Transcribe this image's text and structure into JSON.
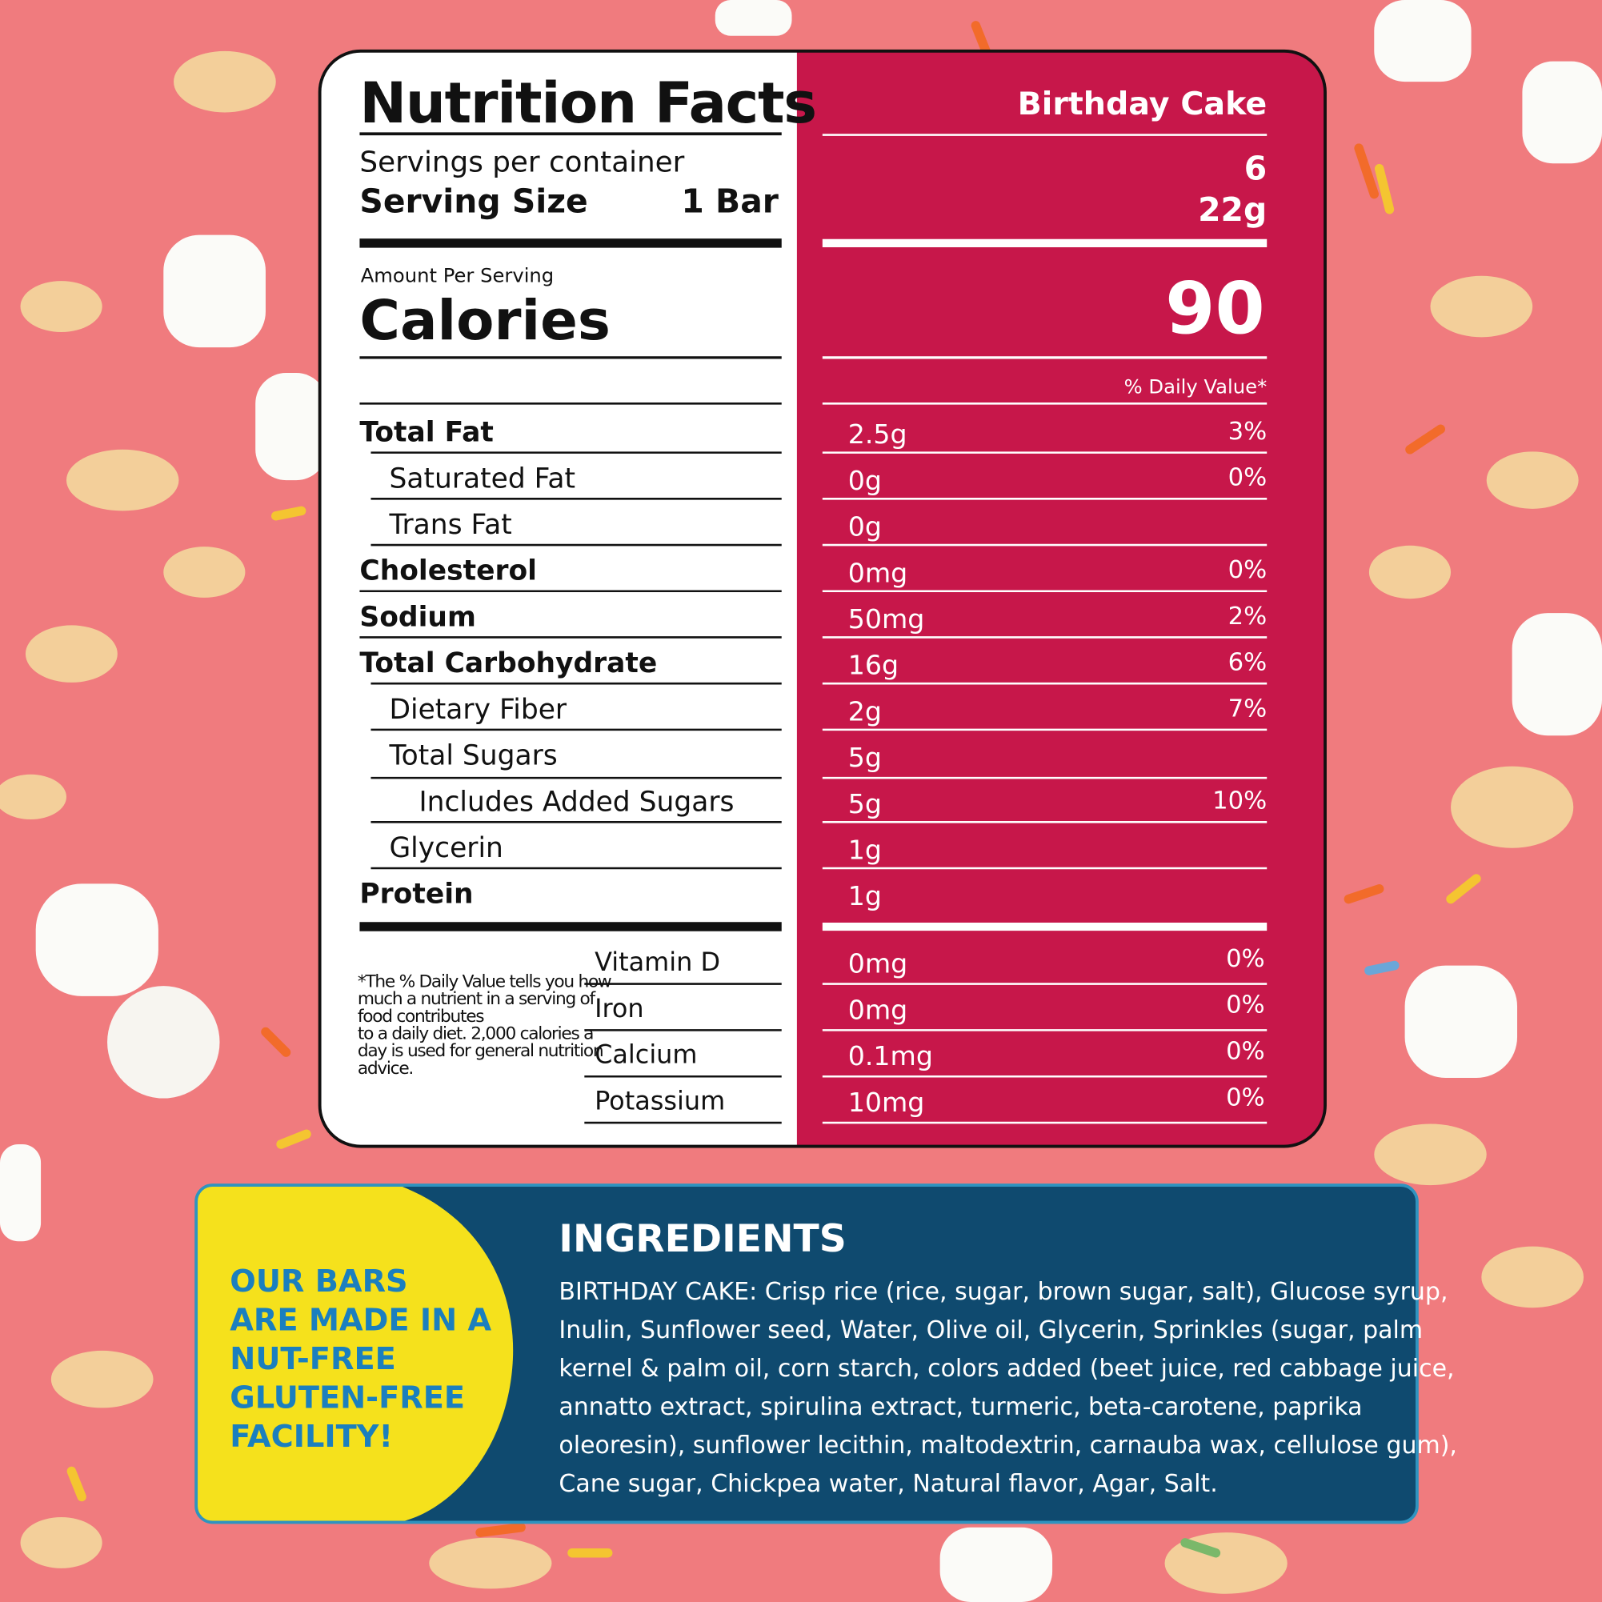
{
  "label": {
    "title": "Nutrition Facts",
    "flavor": "Birthday Cake",
    "servings_label": "Servings per container",
    "servings": "6",
    "serving_size_label": "Serving Size",
    "serving_size": "1 Bar",
    "serving_size_amount": "22g",
    "amount_per_serving": "Amount Per Serving",
    "calories_label": "Calories",
    "calories": "90",
    "daily_value_header": "% Daily Value*",
    "rows": [
      {
        "name": "Total Fat",
        "amount": "2.5g",
        "dv": "3%"
      },
      {
        "name": "Saturated Fat",
        "amount": "0g",
        "dv": "0%"
      },
      {
        "name": "Trans Fat",
        "amount": "0g"
      },
      {
        "name": "Cholesterol",
        "amount": "0mg",
        "dv": "0%"
      },
      {
        "name": "Sodium",
        "amount": "50mg",
        "dv": "2%"
      },
      {
        "name": "Total Carbohydrate",
        "amount": "16g",
        "dv": "6%"
      },
      {
        "name": "Dietary Fiber",
        "amount": "2g",
        "dv": "7%"
      },
      {
        "name": "Total Sugars",
        "amount": "5g"
      },
      {
        "name": "Includes Added Sugars",
        "amount": "5g",
        "dv": "10%"
      },
      {
        "name": "Glycerin",
        "amount": "1g"
      },
      {
        "name": "Protein",
        "amount": "1g"
      }
    ],
    "footnote": [
      "*The % Daily Value tells you how",
      "much a nutrient in a serving of",
      "food contributes",
      " to a daily diet. 2,000 calories a",
      "day is used for general nutrition",
      "advice."
    ],
    "vitamins": [
      {
        "name": "Vitamin D",
        "amount": "0mg",
        "dv": "0%"
      },
      {
        "name": "Iron",
        "amount": "0mg",
        "dv": "0%"
      },
      {
        "name": "Calcium",
        "amount": "0.1mg",
        "dv": "0%"
      },
      {
        "name": "Potassium",
        "amount": "10mg",
        "dv": "0%"
      }
    ]
  },
  "ingredients": {
    "badge": [
      "OUR BARS",
      "ARE MADE IN A",
      "NUT-FREE",
      "GLUTEN-FREE",
      "FACILITY!"
    ],
    "title": "INGREDIENTS",
    "lines": [
      "BIRTHDAY CAKE: Crisp rice (rice, sugar, brown sugar, salt), Glucose syrup,",
      "Inulin, Sunflower seed, Water, Olive oil, Glycerin, Sprinkles (sugar, palm",
      "kernel & palm oil, corn starch, colors added (beet juice, red cabbage juice,",
      "annatto extract, spirulina extract, turmeric, beta-carotene, paprika",
      "oleoresin), sunflower lecithin, maltodextrin, carnauba wax, cellulose gum),",
      "Cane sugar, Chickpea water, Natural flavor, Agar, Salt."
    ]
  }
}
